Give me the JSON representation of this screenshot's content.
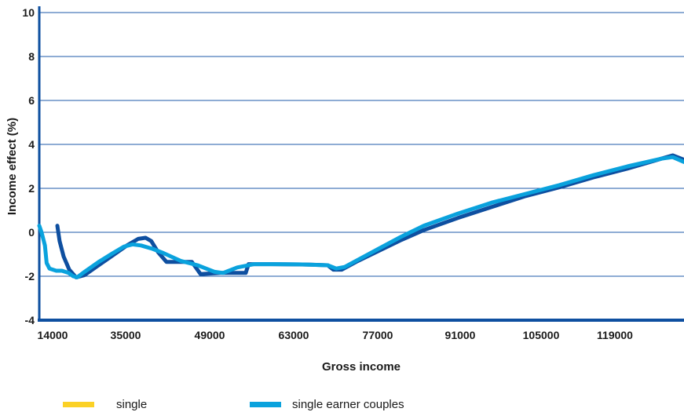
{
  "chart_data": {
    "type": "line",
    "xlabel": "Gross income",
    "ylabel": "Income effect  (%)",
    "xlim": [
      14000,
      128000
    ],
    "ylim": [
      -4,
      10
    ],
    "x_ticks": [
      "14000",
      "35000",
      "49000",
      "63000",
      "77000",
      "91000",
      "105000",
      "119000"
    ],
    "y_ticks": [
      "-4",
      "-2",
      "0",
      "2",
      "4",
      "6",
      "8",
      "10"
    ],
    "grid": true,
    "legend_position": "bottom",
    "legend": [
      "single",
      "single earner couples"
    ],
    "series": [
      {
        "name": "single",
        "color": "#fbd126",
        "values": []
      },
      {
        "name": "series-dark-blue",
        "color": "#0e4fa0",
        "values": [
          [
            17200,
            0.3
          ],
          [
            17600,
            -0.4
          ],
          [
            18300,
            -1.1
          ],
          [
            19300,
            -1.7
          ],
          [
            20500,
            -2.05
          ],
          [
            22000,
            -1.95
          ],
          [
            24500,
            -1.5
          ],
          [
            27000,
            -1.05
          ],
          [
            29500,
            -0.6
          ],
          [
            31500,
            -0.3
          ],
          [
            32800,
            -0.25
          ],
          [
            33800,
            -0.4
          ],
          [
            35000,
            -0.9
          ],
          [
            36500,
            -1.35
          ],
          [
            38500,
            -1.35
          ],
          [
            41000,
            -1.35
          ],
          [
            42500,
            -1.9
          ],
          [
            46000,
            -1.85
          ],
          [
            50500,
            -1.85
          ],
          [
            51000,
            -1.45
          ],
          [
            55000,
            -1.45
          ],
          [
            62000,
            -1.47
          ],
          [
            65000,
            -1.5
          ],
          [
            66000,
            -1.7
          ],
          [
            67500,
            -1.7
          ],
          [
            70000,
            -1.35
          ],
          [
            74000,
            -0.85
          ],
          [
            78000,
            -0.35
          ],
          [
            82000,
            0.1
          ],
          [
            88000,
            0.65
          ],
          [
            94000,
            1.15
          ],
          [
            100000,
            1.65
          ],
          [
            106000,
            2.05
          ],
          [
            112000,
            2.5
          ],
          [
            118000,
            2.9
          ],
          [
            124000,
            3.35
          ],
          [
            126000,
            3.5
          ],
          [
            128000,
            3.3
          ]
        ]
      },
      {
        "name": "single earner couples",
        "color": "#0aa2dd",
        "values": [
          [
            14000,
            0.3
          ],
          [
            14400,
            0.0
          ],
          [
            15000,
            -0.6
          ],
          [
            15300,
            -1.4
          ],
          [
            15800,
            -1.65
          ],
          [
            17000,
            -1.75
          ],
          [
            18000,
            -1.75
          ],
          [
            19200,
            -1.85
          ],
          [
            20000,
            -2.0
          ],
          [
            20700,
            -2.05
          ],
          [
            22000,
            -1.8
          ],
          [
            24500,
            -1.35
          ],
          [
            27000,
            -0.95
          ],
          [
            29000,
            -0.65
          ],
          [
            30500,
            -0.55
          ],
          [
            32000,
            -0.6
          ],
          [
            34000,
            -0.75
          ],
          [
            36000,
            -0.95
          ],
          [
            39000,
            -1.3
          ],
          [
            42000,
            -1.5
          ],
          [
            45000,
            -1.8
          ],
          [
            46500,
            -1.85
          ],
          [
            49000,
            -1.6
          ],
          [
            52000,
            -1.45
          ],
          [
            56000,
            -1.45
          ],
          [
            60000,
            -1.46
          ],
          [
            65000,
            -1.5
          ],
          [
            66500,
            -1.65
          ],
          [
            68000,
            -1.58
          ],
          [
            70000,
            -1.3
          ],
          [
            74000,
            -0.75
          ],
          [
            78000,
            -0.2
          ],
          [
            82000,
            0.3
          ],
          [
            88000,
            0.85
          ],
          [
            94000,
            1.35
          ],
          [
            100000,
            1.75
          ],
          [
            106000,
            2.15
          ],
          [
            112000,
            2.6
          ],
          [
            118000,
            3.0
          ],
          [
            124000,
            3.35
          ],
          [
            126000,
            3.42
          ],
          [
            128000,
            3.2
          ]
        ]
      }
    ]
  }
}
